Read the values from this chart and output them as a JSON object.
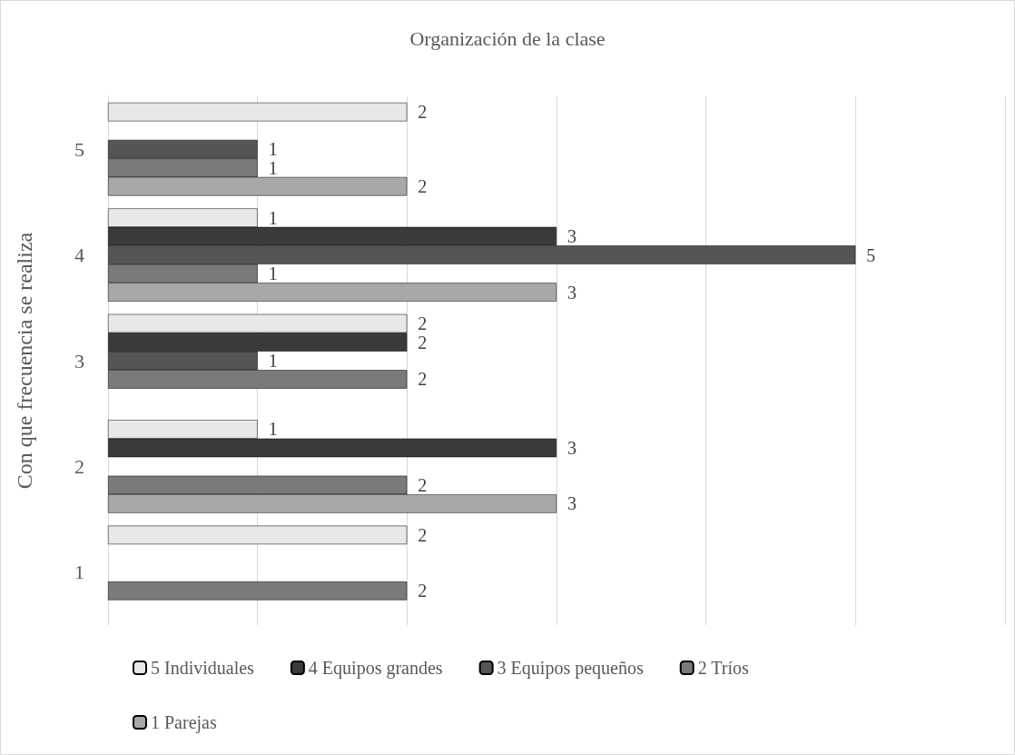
{
  "chart_data": {
    "type": "bar",
    "orientation": "horizontal",
    "title": "Organización de la clase",
    "ylabel": "Con que frecuencia se realiza",
    "categories": [
      "5",
      "4",
      "3",
      "2",
      "1"
    ],
    "series": [
      {
        "name": "5 Individuales",
        "color": "#e8e8e8",
        "values": [
          2,
          1,
          2,
          1,
          2
        ]
      },
      {
        "name": "4 Equipos grandes",
        "color": "#3a3a3a",
        "values": [
          null,
          3,
          2,
          3,
          null
        ]
      },
      {
        "name": "3 Equipos pequeños",
        "color": "#555555",
        "values": [
          1,
          5,
          1,
          null,
          null
        ]
      },
      {
        "name": "2 Tríos",
        "color": "#7a7a7a",
        "values": [
          1,
          1,
          2,
          2,
          2
        ]
      },
      {
        "name": "1 Parejas",
        "color": "#a8a8a8",
        "values": [
          2,
          3,
          null,
          3,
          null
        ]
      }
    ],
    "xlim": [
      0,
      6
    ],
    "xticks": [
      {
        "value": 0,
        "label": null
      },
      {
        "value": 1,
        "label": null
      },
      {
        "value": 2,
        "label": null
      },
      {
        "value": 3,
        "label": null
      },
      {
        "value": 4,
        "label": null
      },
      {
        "value": 5,
        "label": null
      },
      {
        "value": 6,
        "label": null
      }
    ],
    "tick_labels": "y",
    "grid": "x",
    "data_labels": true,
    "legend": "bottom"
  }
}
